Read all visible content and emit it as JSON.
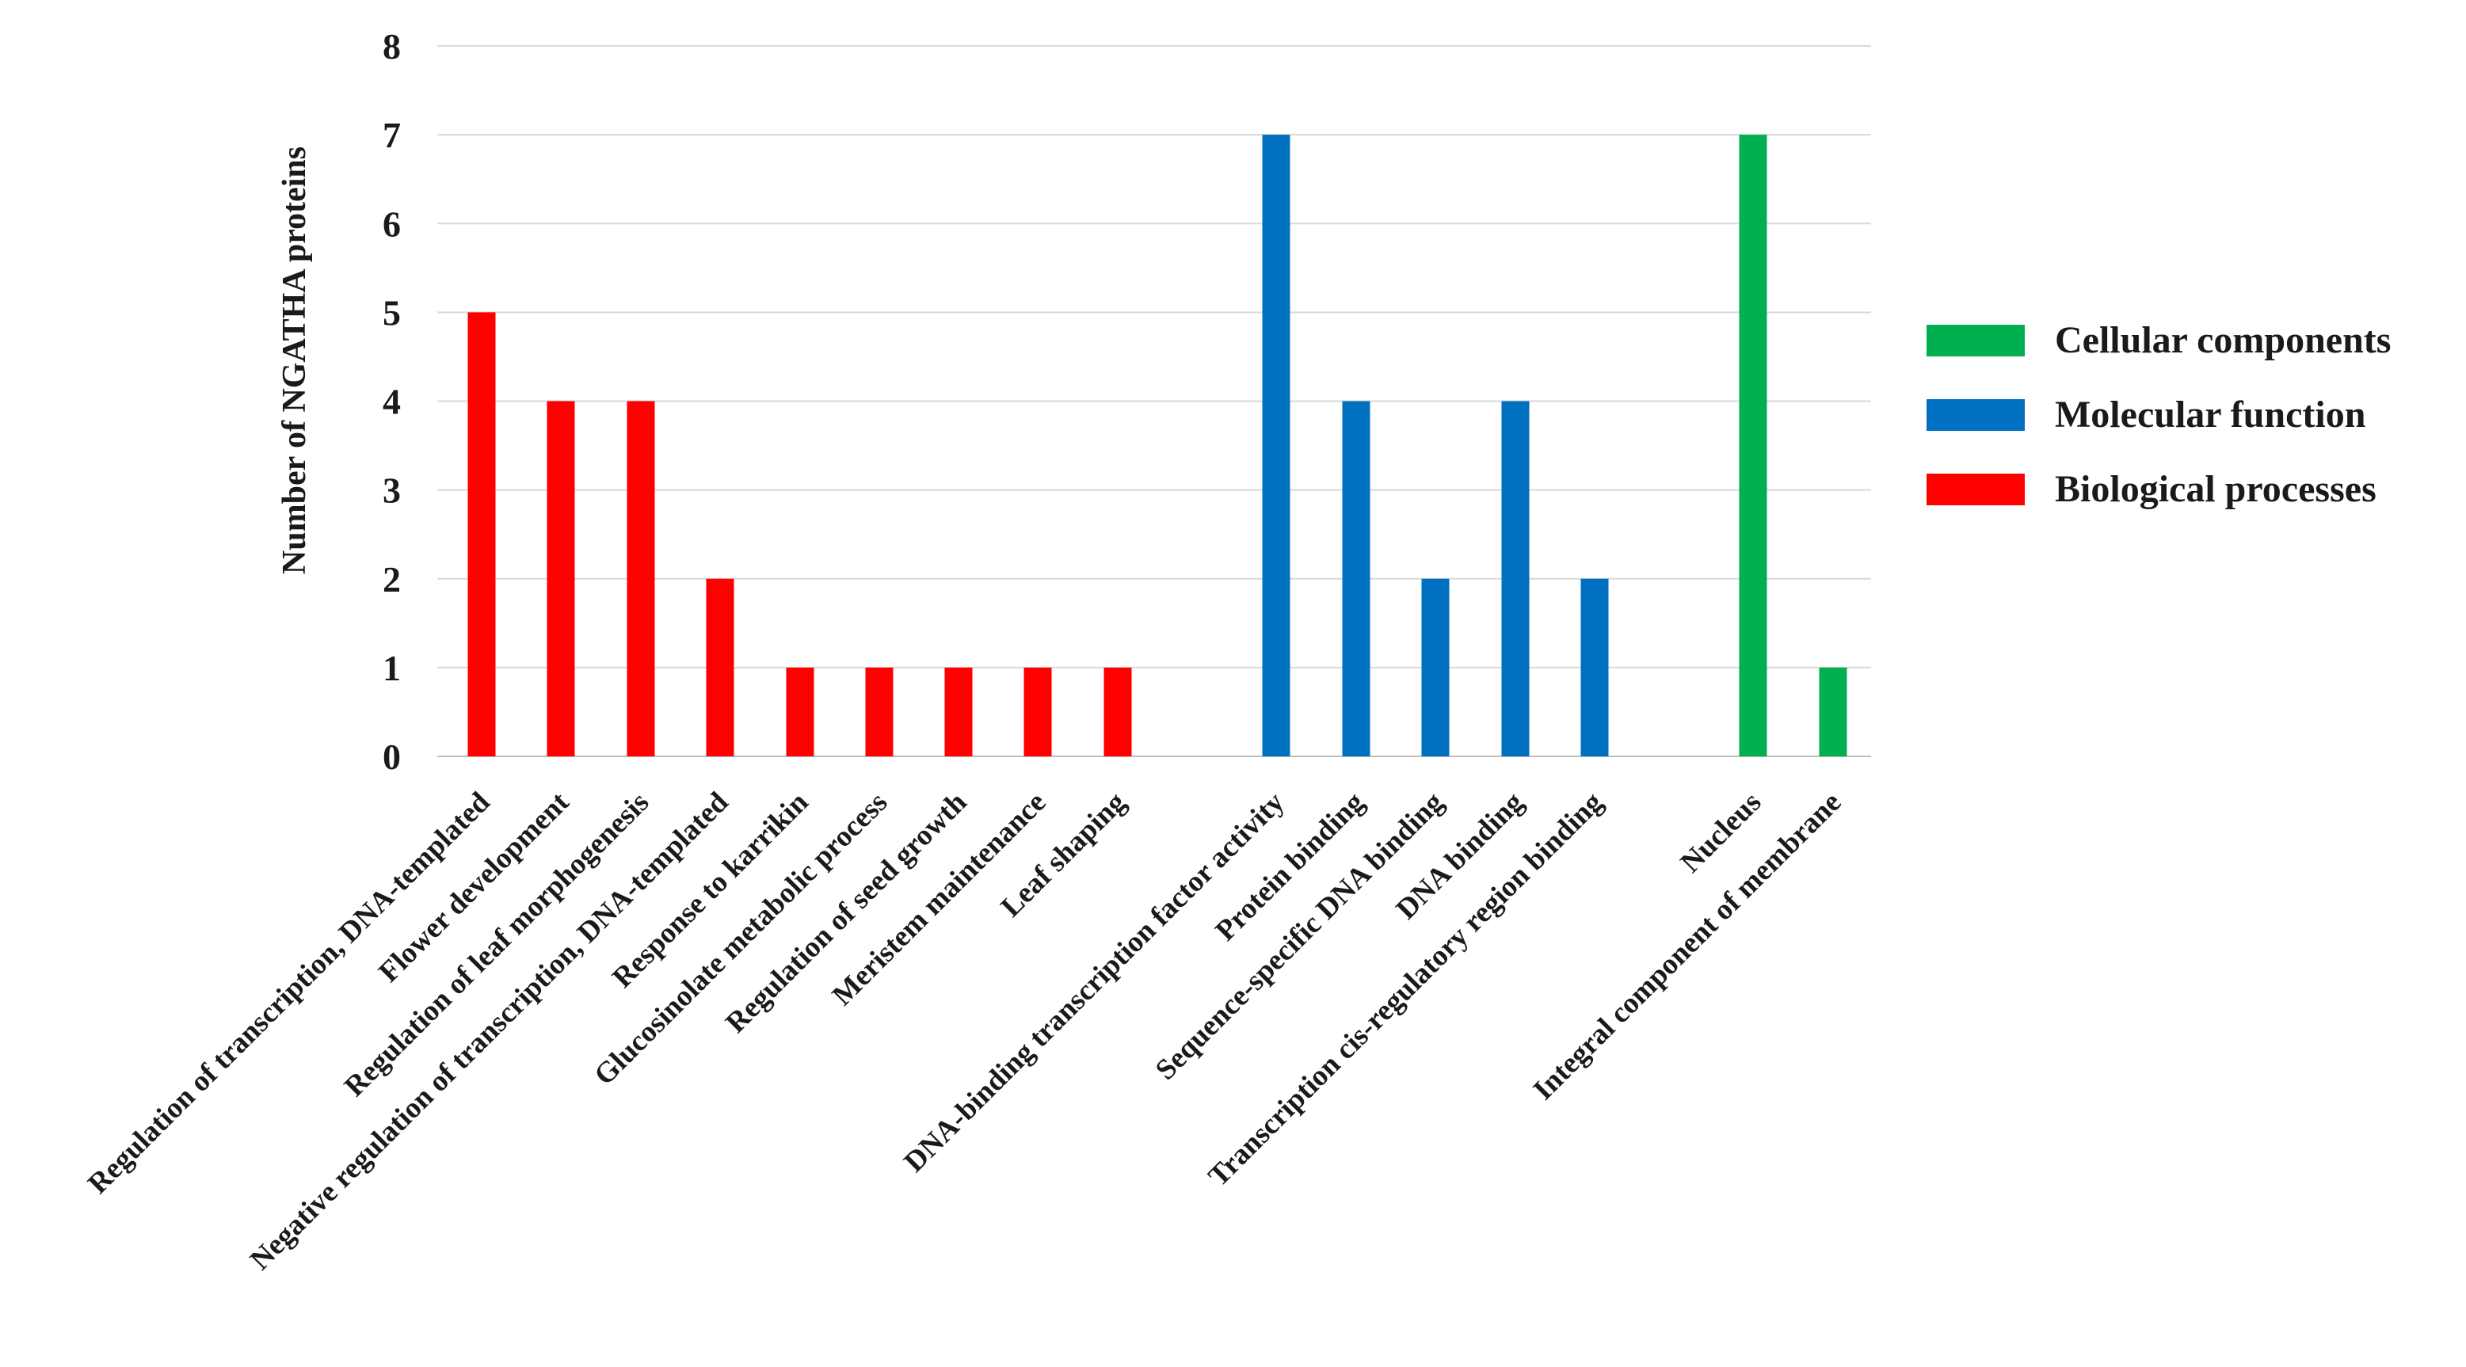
{
  "chart_data": {
    "type": "bar",
    "title": "",
    "xlabel": "",
    "ylabel": "Number of NGATHA proteins",
    "ylim": [
      0,
      8
    ],
    "yticks": [
      0,
      1,
      2,
      3,
      4,
      5,
      6,
      7,
      8
    ],
    "grid": true,
    "legend_position": "right",
    "categories": [
      "Regulation of transcription, DNA-templated",
      "Flower development",
      "Regulation of leaf morphogenesis",
      "Negative regulation of transcription, DNA-templated",
      "Response to karrikin",
      "Glucosinolate metabolic process",
      "Regulation of seed growth",
      "Meristem maintenance",
      "Leaf shaping",
      "DNA-binding transcription factor activity",
      "Protein binding",
      "Sequence-specific DNA binding",
      "DNA binding",
      "Transcription cis-regulatory region binding",
      "Nucleus",
      "Integral component of membrane"
    ],
    "values": [
      5,
      4,
      4,
      2,
      1,
      1,
      1,
      1,
      1,
      7,
      4,
      2,
      4,
      2,
      7,
      1
    ],
    "groups": [
      "Biological processes",
      "Biological processes",
      "Biological processes",
      "Biological processes",
      "Biological processes",
      "Biological processes",
      "Biological processes",
      "Biological processes",
      "Biological processes",
      "Molecular function",
      "Molecular function",
      "Molecular function",
      "Molecular function",
      "Molecular function",
      "Cellular components",
      "Cellular components"
    ],
    "legend": [
      {
        "name": "Cellular components",
        "color": "#00b050"
      },
      {
        "name": "Molecular function",
        "color": "#0070c0"
      },
      {
        "name": "Biological processes",
        "color": "#ff0000"
      }
    ]
  }
}
